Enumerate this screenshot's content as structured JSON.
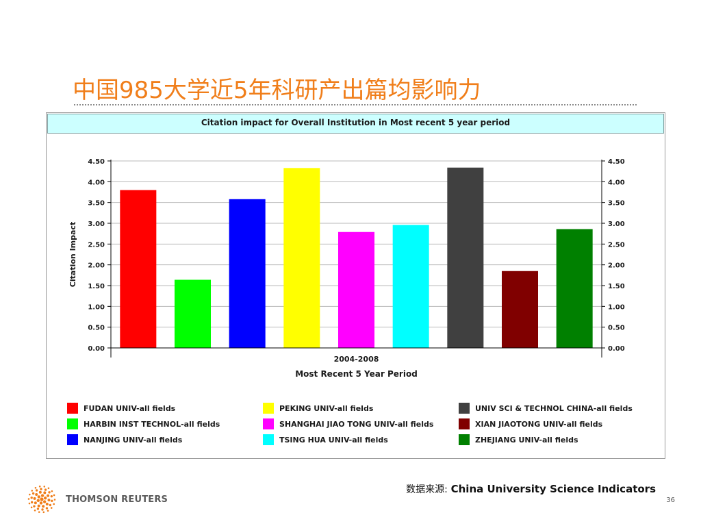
{
  "slide": {
    "title": "中国985大学近5年科研产出篇均影响力",
    "source_prefix": "数据来源:",
    "source_name": "China University Science Indicators",
    "brand": "THOMSON REUTERS",
    "page_number": "36"
  },
  "chart_data": {
    "type": "bar",
    "title": "Citation impact for Overall Institution in Most recent 5 year period",
    "xlabel": "Most Recent 5 Year Period",
    "ylabel": "Citation Impact",
    "category_label": "2004-2008",
    "ylim": [
      0,
      4.5
    ],
    "yticks": [
      "0.00",
      "0.50",
      "1.00",
      "1.50",
      "2.00",
      "2.50",
      "3.00",
      "3.50",
      "4.00",
      "4.50"
    ],
    "grid": true,
    "legend_position": "bottom",
    "series": [
      {
        "name": "FUDAN UNIV-all fields",
        "value": 3.8,
        "color": "#ff0000"
      },
      {
        "name": "HARBIN INST TECHNOL-all fields",
        "value": 1.64,
        "color": "#00ff00"
      },
      {
        "name": "NANJING UNIV-all fields",
        "value": 3.58,
        "color": "#0000ff"
      },
      {
        "name": "PEKING UNIV-all fields",
        "value": 4.33,
        "color": "#ffff00"
      },
      {
        "name": "SHANGHAI JIAO TONG UNIV-all fields",
        "value": 2.79,
        "color": "#ff00ff"
      },
      {
        "name": "TSING HUA UNIV-all fields",
        "value": 2.96,
        "color": "#00ffff"
      },
      {
        "name": "UNIV SCI & TECHNOL CHINA-all fields",
        "value": 4.34,
        "color": "#404040"
      },
      {
        "name": "XIAN JIAOTONG UNIV-all fields",
        "value": 1.85,
        "color": "#800000"
      },
      {
        "name": "ZHEJIANG UNIV-all fields",
        "value": 2.86,
        "color": "#008000"
      }
    ]
  }
}
